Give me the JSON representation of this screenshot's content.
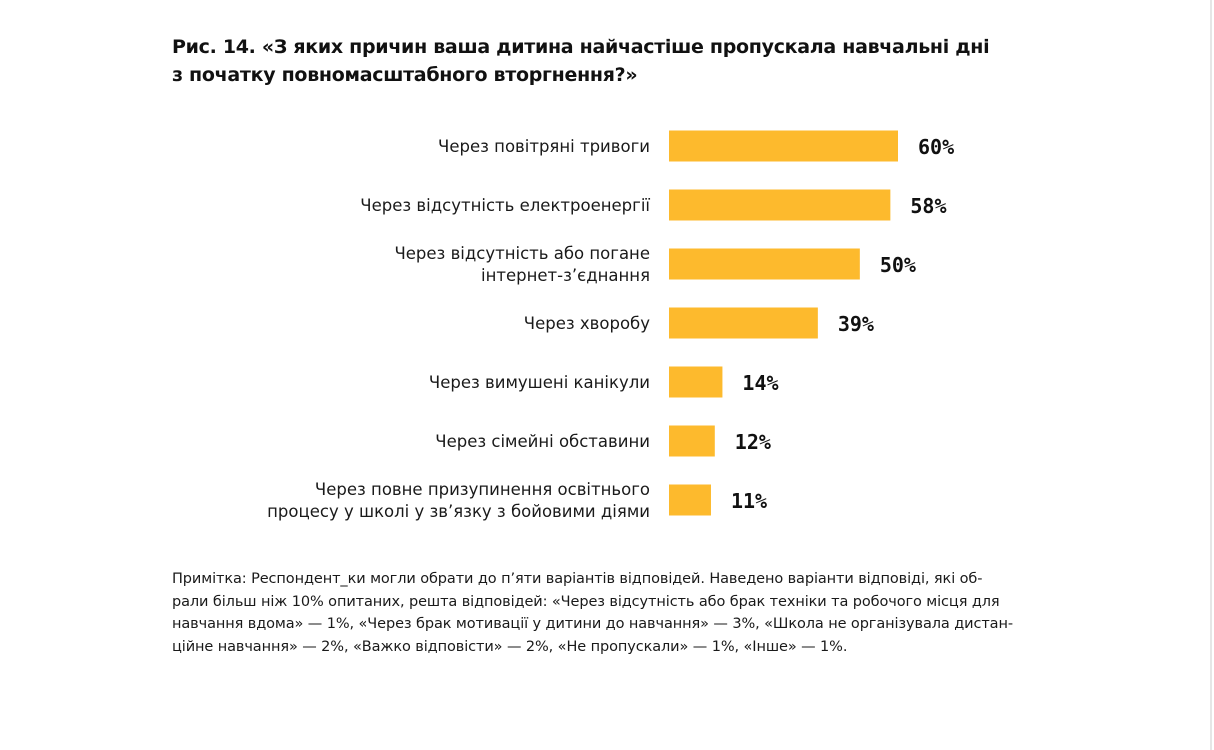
{
  "figure": {
    "title_lines": [
      "Рис. 14. «З яких причин ваша дитина найчастіше пропускала навчальні дні",
      "з початку повномасштабного вторгнення?»"
    ],
    "note_lines": [
      "Примітка: Респондент_ки могли обрати до п’яти варіантів відповідей. Наведено варіанти відповіді, які об-",
      "рали більш ніж 10% опитаних, решта відповідей: «Через відсутність або брак техніки та робочого місця для",
      "навчання вдома» — 1%, «Через брак мотивації у дитини до навчання» — 3%, «Школа не організувала дистан-",
      "ційне навчання» — 2%, «Важко відповісти» — 2%, «Не пропускали» — 1%, «Інше» — 1%."
    ]
  },
  "chart_data": {
    "type": "bar",
    "orientation": "horizontal",
    "categories": [
      [
        "Через повітряні тривоги"
      ],
      [
        "Через відсутність електроенергії"
      ],
      [
        "Через відсутність або погане",
        "інтернет-з’єднання"
      ],
      [
        "Через хворобу"
      ],
      [
        "Через вимушені канікули"
      ],
      [
        "Через сімейні обставини"
      ],
      [
        "Через повне призупинення освітнього",
        "процесу у школі у зв’язку з бойовими діями"
      ]
    ],
    "values": [
      60,
      58,
      50,
      39,
      14,
      12,
      11
    ],
    "value_labels": [
      "60%",
      "58%",
      "50%",
      "39%",
      "14%",
      "12%",
      "11%"
    ],
    "unit": "%",
    "xlim": [
      0,
      60
    ],
    "grid": false,
    "legend": "none",
    "bar_color": "#FDBA2D"
  }
}
